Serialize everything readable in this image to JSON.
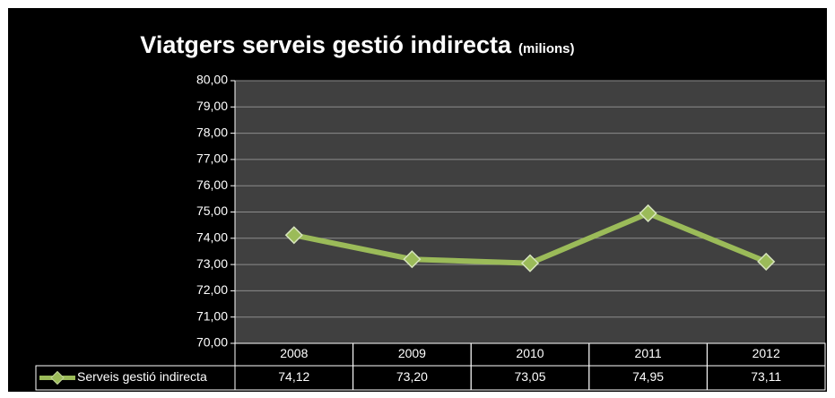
{
  "chart_data": {
    "type": "line",
    "title": "Viatgers serveis gestió indirecta",
    "subtitle": "(milions)",
    "categories": [
      "2008",
      "2009",
      "2010",
      "2011",
      "2012"
    ],
    "series": [
      {
        "name": "Serveis gestió indirecta",
        "color": "#9bbb59",
        "values": [
          74.12,
          73.2,
          73.05,
          74.95,
          73.11
        ],
        "value_labels": [
          "74,12",
          "73,20",
          "73,05",
          "74,95",
          "73,11"
        ]
      }
    ],
    "ylim": [
      70,
      80
    ],
    "yticks": [
      {
        "value": 70,
        "label": "70,00"
      },
      {
        "value": 71,
        "label": "71,00"
      },
      {
        "value": 72,
        "label": "72,00"
      },
      {
        "value": 73,
        "label": "73,00"
      },
      {
        "value": 74,
        "label": "74,00"
      },
      {
        "value": 75,
        "label": "75,00"
      },
      {
        "value": 76,
        "label": "76,00"
      },
      {
        "value": 77,
        "label": "77,00"
      },
      {
        "value": 78,
        "label": "78,00"
      },
      {
        "value": 79,
        "label": "79,00"
      },
      {
        "value": 80,
        "label": "80,00"
      }
    ],
    "grid": true,
    "data_table": true
  }
}
